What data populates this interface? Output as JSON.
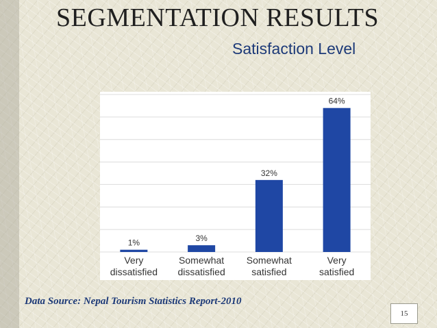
{
  "slide": {
    "title": "SEGMENTATION RESULTS",
    "subtitle": "Satisfaction Level",
    "source": "Data  Source: Nepal Tourism Statistics Report-2010",
    "page_number": "15"
  },
  "colors": {
    "bar": "#1f47a4",
    "grid": "#dcdcdc",
    "text": "#333333"
  },
  "chart_data": {
    "type": "bar",
    "categories": [
      [
        "Very",
        "dissatisfied"
      ],
      [
        "Somewhat",
        "dissatisfied"
      ],
      [
        "Somewhat",
        "satisfied"
      ],
      [
        "Very",
        "satisfied"
      ]
    ],
    "values": [
      1,
      3,
      32,
      64
    ],
    "data_labels": [
      "1%",
      "3%",
      "32%",
      "64%"
    ],
    "ylim": [
      0,
      70
    ],
    "grid": true,
    "title": "Satisfaction Level",
    "xlabel": "",
    "ylabel": ""
  }
}
